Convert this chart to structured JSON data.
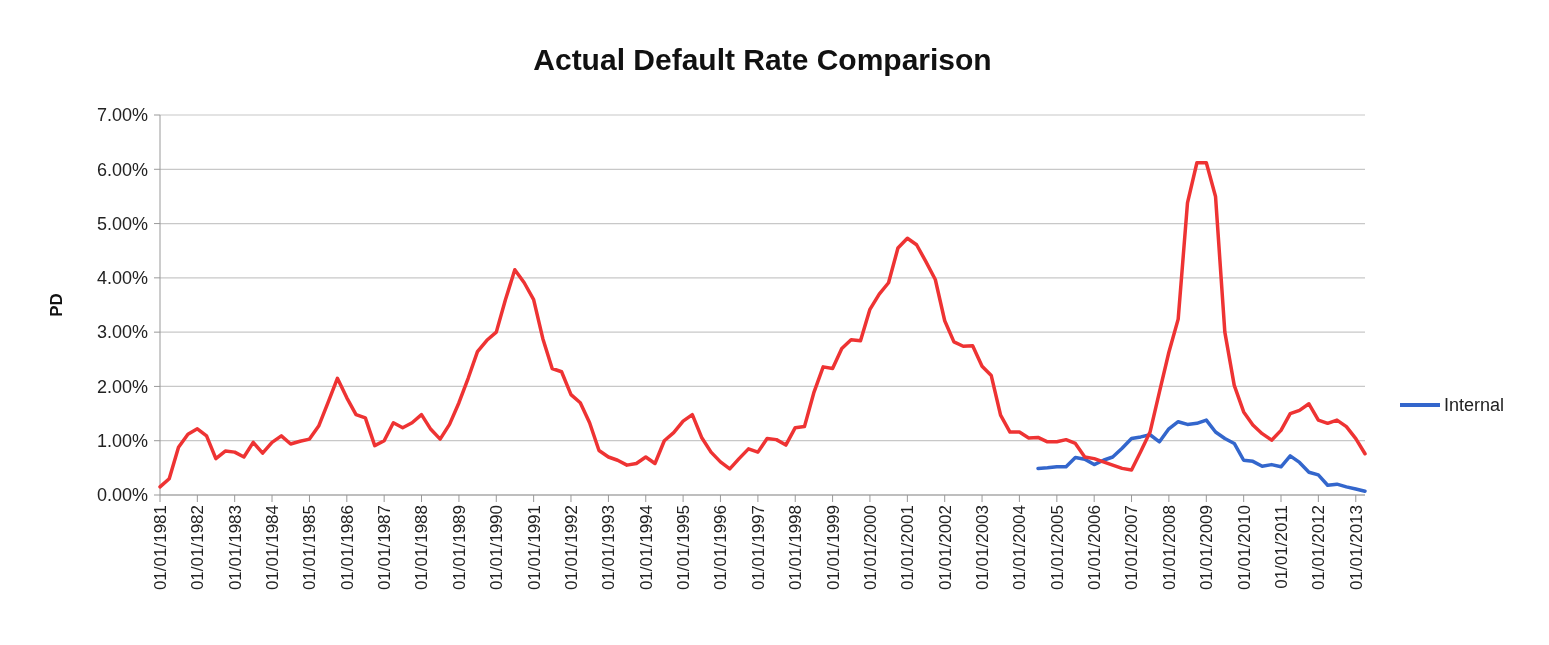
{
  "chart_data": {
    "type": "line",
    "title": "Actual Default Rate Comparison",
    "ylabel": "PD",
    "x": [
      "1981-01-01",
      "1981-04-01",
      "1981-07-01",
      "1981-10-01",
      "1982-01-01",
      "1982-04-01",
      "1982-07-01",
      "1982-10-01",
      "1983-01-01",
      "1983-04-01",
      "1983-07-01",
      "1983-10-01",
      "1984-01-01",
      "1984-04-01",
      "1984-07-01",
      "1984-10-01",
      "1985-01-01",
      "1985-04-01",
      "1985-07-01",
      "1985-10-01",
      "1986-01-01",
      "1986-04-01",
      "1986-07-01",
      "1986-10-01",
      "1987-01-01",
      "1987-04-01",
      "1987-07-01",
      "1987-10-01",
      "1988-01-01",
      "1988-04-01",
      "1988-07-01",
      "1988-10-01",
      "1989-01-01",
      "1989-04-01",
      "1989-07-01",
      "1989-10-01",
      "1990-01-01",
      "1990-04-01",
      "1990-07-01",
      "1990-10-01",
      "1991-01-01",
      "1991-04-01",
      "1991-07-01",
      "1991-10-01",
      "1992-01-01",
      "1992-04-01",
      "1992-07-01",
      "1992-10-01",
      "1993-01-01",
      "1993-04-01",
      "1993-07-01",
      "1993-10-01",
      "1994-01-01",
      "1994-04-01",
      "1994-07-01",
      "1994-10-01",
      "1995-01-01",
      "1995-04-01",
      "1995-07-01",
      "1995-10-01",
      "1996-01-01",
      "1996-04-01",
      "1996-07-01",
      "1996-10-01",
      "1997-01-01",
      "1997-04-01",
      "1997-07-01",
      "1997-10-01",
      "1998-01-01",
      "1998-04-01",
      "1998-07-01",
      "1998-10-01",
      "1999-01-01",
      "1999-04-01",
      "1999-07-01",
      "1999-10-01",
      "2000-01-01",
      "2000-04-01",
      "2000-07-01",
      "2000-10-01",
      "2001-01-01",
      "2001-04-01",
      "2001-07-01",
      "2001-10-01",
      "2002-01-01",
      "2002-04-01",
      "2002-07-01",
      "2002-10-01",
      "2003-01-01",
      "2003-04-01",
      "2003-07-01",
      "2003-10-01",
      "2004-01-01",
      "2004-04-01",
      "2004-07-01",
      "2004-10-01",
      "2005-01-01",
      "2005-04-01",
      "2005-07-01",
      "2005-10-01",
      "2006-01-01",
      "2006-04-01",
      "2006-07-01",
      "2006-10-01",
      "2007-01-01",
      "2007-04-01",
      "2007-07-01",
      "2007-10-01",
      "2008-01-01",
      "2008-04-01",
      "2008-07-01",
      "2008-10-01",
      "2009-01-01",
      "2009-04-01",
      "2009-07-01",
      "2009-10-01",
      "2010-01-01",
      "2010-04-01",
      "2010-07-01",
      "2010-10-01",
      "2011-01-01",
      "2011-04-01",
      "2011-07-01",
      "2011-10-01",
      "2012-01-01",
      "2012-04-01",
      "2012-07-01",
      "2012-10-01",
      "2013-01-01",
      "2013-04-01"
    ],
    "series": [
      {
        "name": "Internal",
        "color": "#3366cc",
        "x": [
          "2004-07-01",
          "2004-10-01",
          "2005-01-01",
          "2005-04-01",
          "2005-07-01",
          "2005-10-01",
          "2006-01-01",
          "2006-04-01",
          "2006-07-01",
          "2006-10-01",
          "2007-01-01",
          "2007-04-01",
          "2007-07-01",
          "2007-10-01",
          "2008-01-01",
          "2008-04-01",
          "2008-07-01",
          "2008-10-01",
          "2009-01-01",
          "2009-04-01",
          "2009-07-01",
          "2009-10-01",
          "2010-01-01",
          "2010-04-01",
          "2010-07-01",
          "2010-10-01",
          "2011-01-01",
          "2011-04-01",
          "2011-07-01",
          "2011-10-01",
          "2012-01-01",
          "2012-04-01",
          "2012-07-01",
          "2012-10-01",
          "2013-01-01",
          "2013-04-01"
        ],
        "values": [
          0.49,
          0.5,
          0.52,
          0.52,
          0.69,
          0.66,
          0.56,
          0.64,
          0.7,
          0.86,
          1.04,
          1.07,
          1.11,
          0.98,
          1.22,
          1.35,
          1.3,
          1.32,
          1.38,
          1.16,
          1.04,
          0.95,
          0.64,
          0.62,
          0.53,
          0.56,
          0.52,
          0.72,
          0.6,
          0.42,
          0.37,
          0.18,
          0.2,
          0.15,
          0.11,
          0.07
        ]
      },
      {
        "color": "#ee3333",
        "values": [
          0.15,
          0.3,
          0.88,
          1.12,
          1.22,
          1.09,
          0.67,
          0.81,
          0.79,
          0.7,
          0.97,
          0.77,
          0.97,
          1.09,
          0.94,
          0.99,
          1.03,
          1.27,
          1.7,
          2.15,
          1.79,
          1.48,
          1.42,
          0.91,
          1.0,
          1.33,
          1.24,
          1.33,
          1.48,
          1.21,
          1.03,
          1.3,
          1.7,
          2.15,
          2.64,
          2.85,
          3.0,
          3.6,
          4.15,
          3.91,
          3.6,
          2.88,
          2.33,
          2.27,
          1.85,
          1.7,
          1.33,
          0.82,
          0.7,
          0.64,
          0.55,
          0.58,
          0.7,
          0.58,
          1.0,
          1.15,
          1.36,
          1.48,
          1.06,
          0.79,
          0.61,
          0.48,
          0.67,
          0.85,
          0.79,
          1.04,
          1.02,
          0.92,
          1.24,
          1.26,
          1.88,
          2.36,
          2.33,
          2.7,
          2.86,
          2.84,
          3.42,
          3.7,
          3.91,
          4.55,
          4.73,
          4.61,
          4.3,
          3.97,
          3.21,
          2.82,
          2.74,
          2.75,
          2.37,
          2.2,
          1.47,
          1.16,
          1.16,
          1.05,
          1.06,
          0.98,
          0.98,
          1.02,
          0.95,
          0.7,
          0.67,
          0.61,
          0.55,
          0.49,
          0.46,
          0.8,
          1.16,
          1.9,
          2.63,
          3.24,
          5.38,
          6.12,
          6.12,
          5.5,
          3.0,
          2.02,
          1.53,
          1.29,
          1.13,
          1.01,
          1.19,
          1.5,
          1.56,
          1.68,
          1.38,
          1.32,
          1.38,
          1.26,
          1.04,
          0.76
        ]
      }
    ],
    "xlim": [
      "1981-01-01",
      "2013-04-01"
    ],
    "xticks": [
      {
        "value": "1981-01-01",
        "label": "01/01/1981"
      },
      {
        "value": "1982-01-01",
        "label": "01/01/1982"
      },
      {
        "value": "1983-01-01",
        "label": "01/01/1983"
      },
      {
        "value": "1984-01-01",
        "label": "01/01/1984"
      },
      {
        "value": "1985-01-01",
        "label": "01/01/1985"
      },
      {
        "value": "1986-01-01",
        "label": "01/01/1986"
      },
      {
        "value": "1987-01-01",
        "label": "01/01/1987"
      },
      {
        "value": "1988-01-01",
        "label": "01/01/1988"
      },
      {
        "value": "1989-01-01",
        "label": "01/01/1989"
      },
      {
        "value": "1990-01-01",
        "label": "01/01/1990"
      },
      {
        "value": "1991-01-01",
        "label": "01/01/1991"
      },
      {
        "value": "1992-01-01",
        "label": "01/01/1992"
      },
      {
        "value": "1993-01-01",
        "label": "01/01/1993"
      },
      {
        "value": "1994-01-01",
        "label": "01/01/1994"
      },
      {
        "value": "1995-01-01",
        "label": "01/01/1995"
      },
      {
        "value": "1996-01-01",
        "label": "01/01/1996"
      },
      {
        "value": "1997-01-01",
        "label": "01/01/1997"
      },
      {
        "value": "1998-01-01",
        "label": "01/01/1998"
      },
      {
        "value": "1999-01-01",
        "label": "01/01/1999"
      },
      {
        "value": "2000-01-01",
        "label": "01/01/2000"
      },
      {
        "value": "2001-01-01",
        "label": "01/01/2001"
      },
      {
        "value": "2002-01-01",
        "label": "01/01/2002"
      },
      {
        "value": "2003-01-01",
        "label": "01/01/2003"
      },
      {
        "value": "2004-01-01",
        "label": "01/01/2004"
      },
      {
        "value": "2005-01-01",
        "label": "01/01/2005"
      },
      {
        "value": "2006-01-01",
        "label": "01/01/2006"
      },
      {
        "value": "2007-01-01",
        "label": "01/01/2007"
      },
      {
        "value": "2008-01-01",
        "label": "01/01/2008"
      },
      {
        "value": "2009-01-01",
        "label": "01/01/2009"
      },
      {
        "value": "2010-01-01",
        "label": "01/01/2010"
      },
      {
        "value": "2011-01-01",
        "label": "01/01/2011"
      },
      {
        "value": "2012-01-01",
        "label": "01/01/2012"
      },
      {
        "value": "2013-01-01",
        "label": "01/01/2013"
      }
    ],
    "ylim": [
      0,
      7
    ],
    "yticks": [
      {
        "value": 0,
        "label": "0.00%"
      },
      {
        "value": 1,
        "label": "1.00%"
      },
      {
        "value": 2,
        "label": "2.00%"
      },
      {
        "value": 3,
        "label": "3.00%"
      },
      {
        "value": 4,
        "label": "4.00%"
      },
      {
        "value": 5,
        "label": "5.00%"
      },
      {
        "value": 6,
        "label": "6.00%"
      },
      {
        "value": 7,
        "label": "7.00%"
      }
    ],
    "grid": "y",
    "legend": "right",
    "marker": "none",
    "line_style": "solid"
  }
}
